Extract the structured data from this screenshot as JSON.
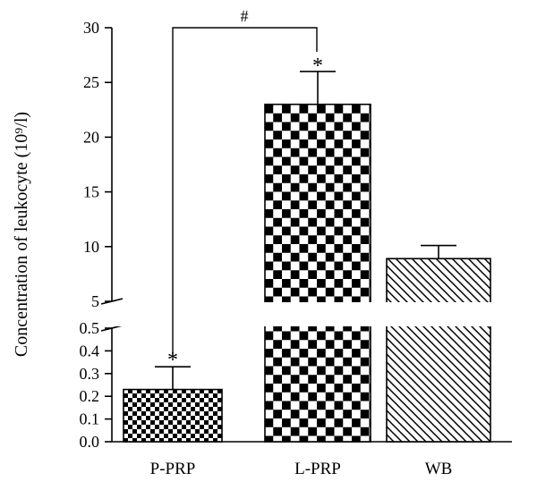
{
  "chart_data": {
    "type": "bar",
    "ylabel": "Concentration of leukocyte (10⁹/l)",
    "categories": [
      "P-PRP",
      "L-PRP",
      "WB"
    ],
    "values": [
      0.23,
      23.0,
      8.9
    ],
    "errors": [
      0.1,
      3.0,
      1.2
    ],
    "patterns": [
      "fine-checker",
      "checker",
      "diagonal-hatch"
    ],
    "colors": {
      "ink": "#000000",
      "background": "#ffffff"
    },
    "axis_break": true,
    "segments": {
      "lower": {
        "ylim": [
          0.0,
          0.5
        ],
        "ticks": [
          "0.0",
          "0.1",
          "0.2",
          "0.3",
          "0.4",
          "0.5"
        ]
      },
      "upper": {
        "ylim": [
          5,
          30
        ],
        "ticks": [
          "5",
          "10",
          "15",
          "20",
          "25",
          "30"
        ]
      }
    },
    "annotations": {
      "stars": [
        "*",
        "*"
      ],
      "comparison": {
        "from": "P-PRP",
        "to": "L-PRP",
        "symbol": "#"
      }
    }
  }
}
